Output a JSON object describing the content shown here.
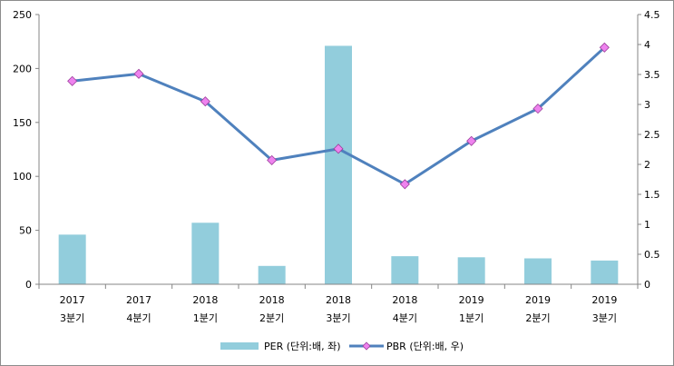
{
  "chart_data": {
    "type": "bar+line",
    "categories": [
      {
        "year": "2017",
        "quarter": "3분기"
      },
      {
        "year": "2017",
        "quarter": "4분기"
      },
      {
        "year": "2018",
        "quarter": "1분기"
      },
      {
        "year": "2018",
        "quarter": "2분기"
      },
      {
        "year": "2018",
        "quarter": "3분기"
      },
      {
        "year": "2018",
        "quarter": "4분기"
      },
      {
        "year": "2019",
        "quarter": "1분기"
      },
      {
        "year": "2019",
        "quarter": "2분기"
      },
      {
        "year": "2019",
        "quarter": "3분기"
      }
    ],
    "series": [
      {
        "name": "PER (단위:배, 좌)",
        "type": "bar",
        "axis": "left",
        "color": "#92cddc",
        "values": [
          46,
          null,
          57,
          17,
          221,
          26,
          25,
          24,
          22
        ]
      },
      {
        "name": "PBR (단위:배, 우)",
        "type": "line",
        "axis": "right",
        "color": "#4f81bd",
        "marker_color": "#ee82ee",
        "values": [
          3.39,
          3.51,
          3.05,
          2.07,
          2.26,
          1.67,
          2.39,
          2.93,
          3.95
        ]
      }
    ],
    "y_left": {
      "min": 0,
      "max": 250,
      "ticks": [
        "0",
        "50",
        "100",
        "150",
        "200",
        "250"
      ]
    },
    "y_right": {
      "min": 0,
      "max": 4.5,
      "ticks": [
        "0",
        "0.5",
        "1",
        "1.5",
        "2",
        "2.5",
        "3",
        "3.5",
        "4",
        "4.5"
      ]
    },
    "grid": false,
    "legend_position": "bottom"
  }
}
